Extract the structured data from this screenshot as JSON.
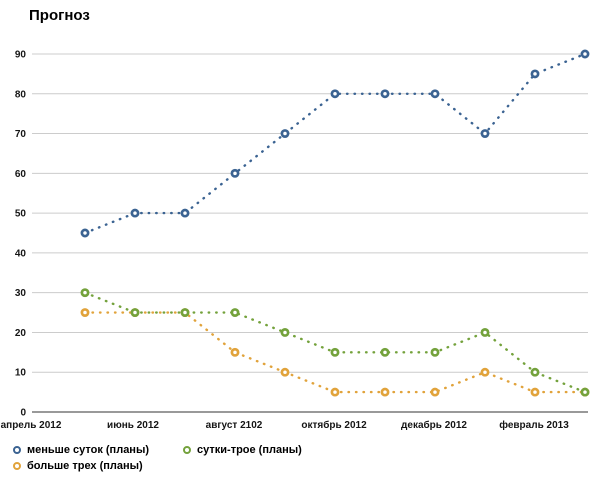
{
  "page": {
    "title": "Прогноз"
  },
  "chart_data": {
    "type": "line",
    "title": "Прогноз",
    "line_style": "dotted",
    "marker": "ring",
    "grid": "horizontal",
    "legend_position": "bottom-left",
    "ylim": [
      0,
      90
    ],
    "y_ticks": [
      0,
      10,
      20,
      30,
      40,
      50,
      60,
      70,
      80,
      90
    ],
    "x_tick_labels": [
      "апрель 2012",
      "июнь 2012",
      "август 2102",
      "октябрь 2012",
      "декабрь 2012",
      "февраль 2013"
    ],
    "num_points": 11,
    "series": [
      {
        "name": "меньше суток (планы)",
        "color": "#3B6392",
        "values": [
          45,
          50,
          50,
          60,
          70,
          80,
          80,
          80,
          70,
          85,
          90
        ]
      },
      {
        "name": "сутки-трое (планы)",
        "color": "#74A23C",
        "values": [
          30,
          25,
          25,
          25,
          20,
          15,
          15,
          15,
          20,
          10,
          5
        ]
      },
      {
        "name": "больше трех (планы)",
        "color": "#E1A33B",
        "values": [
          25,
          25,
          25,
          15,
          10,
          5,
          5,
          5,
          10,
          5,
          5
        ]
      }
    ],
    "colors": {
      "grid": "#CCCCCC",
      "zero_axis": "#333333",
      "label": "#151515",
      "marker_fill": "#FFFFFF"
    }
  }
}
